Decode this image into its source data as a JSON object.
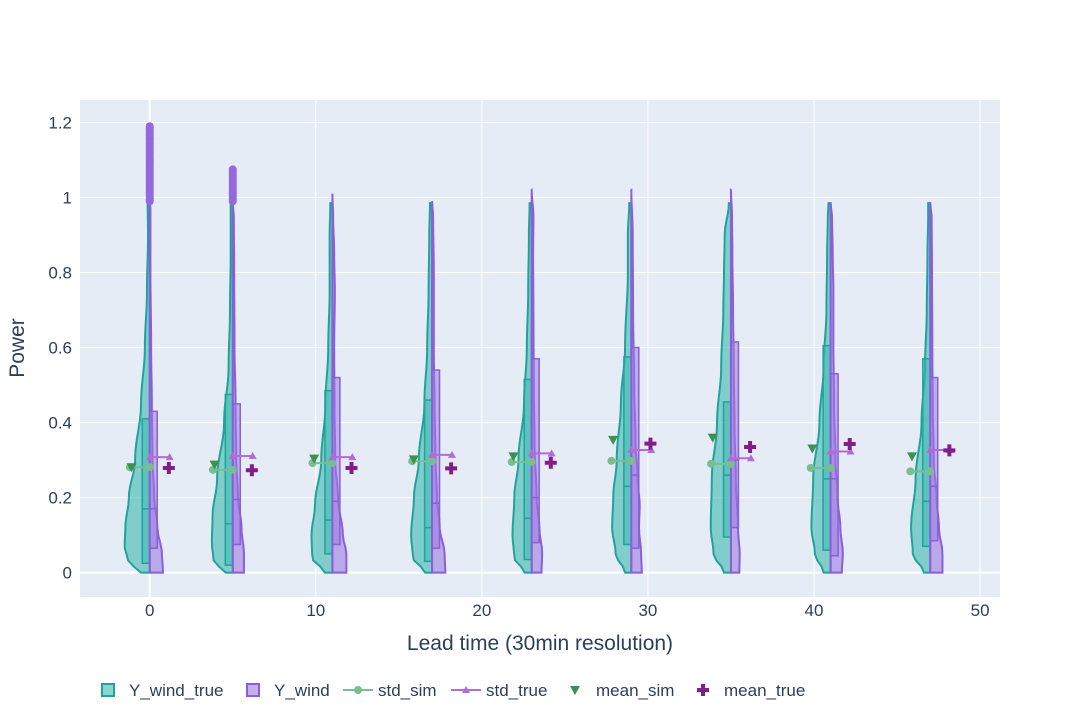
{
  "chart_data": {
    "type": "violin",
    "xlabel": "Lead time (30min resolution)",
    "ylabel": "Power",
    "xlim": [
      -4.2,
      51.2
    ],
    "ylim": [
      -0.065,
      1.26
    ],
    "xticks": [
      0,
      10,
      20,
      30,
      40,
      50
    ],
    "yticks": [
      0,
      0.2,
      0.4,
      0.6,
      0.8,
      1,
      1.2
    ],
    "xtick_labels": [
      "0",
      "10",
      "20",
      "30",
      "40",
      "50"
    ],
    "ytick_labels": [
      "0",
      "0.2",
      "0.4",
      "0.6",
      "0.8",
      "1",
      "1.2"
    ],
    "grid": true,
    "legend_position": "bottom",
    "colors": {
      "plot_bg": "#E5ECF6",
      "grid": "#ffffff",
      "sim_fill": "#3CB9B0",
      "sim_line": "#20A39B",
      "true_fill": "#9C7CE0",
      "true_line": "#8A5FD8",
      "std_sim": "#78BE91",
      "std_true": "#B36BD6",
      "mean_sim": "#3A9152",
      "mean_true": "#821E87",
      "outlier": "#9369DC"
    },
    "legend": [
      {
        "key": "Y_wind_true",
        "label": "Y_wind_true",
        "symbol": "box-sim"
      },
      {
        "key": "Y_wind",
        "label": "Y_wind",
        "symbol": "box-true"
      },
      {
        "key": "std_sim",
        "label": "std_sim",
        "symbol": "line-circle"
      },
      {
        "key": "std_true",
        "label": "std_true",
        "symbol": "line-triangle"
      },
      {
        "key": "mean_sim",
        "label": "mean_sim",
        "symbol": "triangle-down"
      },
      {
        "key": "mean_true",
        "label": "mean_true",
        "symbol": "cross"
      }
    ],
    "lead_times": [
      0,
      5,
      11,
      17,
      23,
      29,
      35,
      41,
      47
    ],
    "series": [
      {
        "name": "Y_wind_true",
        "side": "negative",
        "max": 0.985,
        "quartiles": [
          [
            0.025,
            0.17,
            0.41
          ],
          [
            0.02,
            0.13,
            0.475
          ],
          [
            0.05,
            0.14,
            0.485
          ],
          [
            0.03,
            0.12,
            0.46
          ],
          [
            0.035,
            0.145,
            0.515
          ],
          [
            0.075,
            0.23,
            0.575
          ],
          [
            0.095,
            0.26,
            0.455
          ],
          [
            0.06,
            0.25,
            0.605
          ],
          [
            0.07,
            0.19,
            0.57
          ]
        ],
        "width_profiles": [
          [
            [
              0,
              0.25
            ],
            [
              0.03,
              0.62
            ],
            [
              0.07,
              0.72
            ],
            [
              0.12,
              0.7
            ],
            [
              0.2,
              0.6
            ],
            [
              0.3,
              0.42
            ],
            [
              0.45,
              0.25
            ],
            [
              0.6,
              0.14
            ],
            [
              0.75,
              0.08
            ],
            [
              0.9,
              0.05
            ],
            [
              0.985,
              0.06
            ]
          ],
          [
            [
              0,
              0.2
            ],
            [
              0.03,
              0.55
            ],
            [
              0.08,
              0.6
            ],
            [
              0.15,
              0.58
            ],
            [
              0.25,
              0.45
            ],
            [
              0.4,
              0.25
            ],
            [
              0.55,
              0.12
            ],
            [
              0.7,
              0.08
            ],
            [
              0.85,
              0.06
            ],
            [
              0.985,
              0.06
            ]
          ],
          [
            [
              0,
              0.22
            ],
            [
              0.04,
              0.58
            ],
            [
              0.1,
              0.6
            ],
            [
              0.18,
              0.5
            ],
            [
              0.3,
              0.32
            ],
            [
              0.45,
              0.2
            ],
            [
              0.6,
              0.12
            ],
            [
              0.75,
              0.08
            ],
            [
              0.9,
              0.08
            ],
            [
              0.985,
              0.06
            ]
          ],
          [
            [
              0,
              0.2
            ],
            [
              0.04,
              0.55
            ],
            [
              0.1,
              0.6
            ],
            [
              0.2,
              0.52
            ],
            [
              0.3,
              0.38
            ],
            [
              0.45,
              0.22
            ],
            [
              0.6,
              0.14
            ],
            [
              0.75,
              0.1
            ],
            [
              0.9,
              0.08
            ],
            [
              0.985,
              0.06
            ]
          ],
          [
            [
              0,
              0.2
            ],
            [
              0.04,
              0.5
            ],
            [
              0.1,
              0.55
            ],
            [
              0.2,
              0.5
            ],
            [
              0.3,
              0.38
            ],
            [
              0.45,
              0.22
            ],
            [
              0.6,
              0.14
            ],
            [
              0.75,
              0.1
            ],
            [
              0.9,
              0.08
            ],
            [
              0.985,
              0.06
            ]
          ],
          [
            [
              0,
              0.18
            ],
            [
              0.05,
              0.45
            ],
            [
              0.12,
              0.55
            ],
            [
              0.2,
              0.52
            ],
            [
              0.3,
              0.42
            ],
            [
              0.45,
              0.3
            ],
            [
              0.6,
              0.18
            ],
            [
              0.8,
              0.1
            ],
            [
              0.9,
              0.1
            ],
            [
              0.985,
              0.06
            ]
          ],
          [
            [
              0,
              0.2
            ],
            [
              0.05,
              0.5
            ],
            [
              0.12,
              0.58
            ],
            [
              0.25,
              0.55
            ],
            [
              0.4,
              0.4
            ],
            [
              0.55,
              0.28
            ],
            [
              0.7,
              0.22
            ],
            [
              0.8,
              0.2
            ],
            [
              0.9,
              0.18
            ],
            [
              0.985,
              0.06
            ]
          ],
          [
            [
              0,
              0.2
            ],
            [
              0.05,
              0.45
            ],
            [
              0.12,
              0.55
            ],
            [
              0.25,
              0.5
            ],
            [
              0.4,
              0.32
            ],
            [
              0.55,
              0.2
            ],
            [
              0.7,
              0.12
            ],
            [
              0.85,
              0.1
            ],
            [
              0.95,
              0.08
            ],
            [
              0.985,
              0.06
            ]
          ],
          [
            [
              0,
              0.18
            ],
            [
              0.05,
              0.5
            ],
            [
              0.12,
              0.55
            ],
            [
              0.25,
              0.42
            ],
            [
              0.4,
              0.25
            ],
            [
              0.55,
              0.15
            ],
            [
              0.7,
              0.1
            ],
            [
              0.85,
              0.08
            ],
            [
              0.95,
              0.06
            ],
            [
              0.985,
              0.06
            ]
          ]
        ]
      },
      {
        "name": "Y_wind",
        "side": "positive",
        "tops": [
          1.19,
          1.08,
          1.01,
          0.99,
          1.02,
          1.02,
          1.02,
          0.985,
          0.985
        ],
        "quartiles": [
          [
            0.065,
            0.17,
            0.43
          ],
          [
            0.075,
            0.195,
            0.45
          ],
          [
            0.075,
            0.19,
            0.52
          ],
          [
            0.065,
            0.185,
            0.54
          ],
          [
            0.08,
            0.2,
            0.57
          ],
          [
            0.065,
            0.26,
            0.6
          ],
          [
            0.12,
            0.3,
            0.615
          ],
          [
            0.045,
            0.25,
            0.53
          ],
          [
            0.085,
            0.23,
            0.52
          ]
        ],
        "outlier_ranges": [
          [
            0.99,
            1.19
          ],
          [
            0.99,
            1.075
          ]
        ],
        "width_profiles": [
          [
            [
              0,
              0.38
            ],
            [
              0.05,
              0.35
            ],
            [
              0.12,
              0.22
            ],
            [
              0.2,
              0.13
            ],
            [
              0.3,
              0.08
            ],
            [
              0.45,
              0.06
            ],
            [
              0.6,
              0.04
            ],
            [
              0.8,
              0.02
            ],
            [
              0.97,
              0.02
            ],
            [
              0.99,
              0.0
            ]
          ],
          [
            [
              0,
              0.32
            ],
            [
              0.05,
              0.32
            ],
            [
              0.12,
              0.25
            ],
            [
              0.2,
              0.15
            ],
            [
              0.3,
              0.1
            ],
            [
              0.45,
              0.08
            ],
            [
              0.6,
              0.05
            ],
            [
              0.8,
              0.04
            ],
            [
              0.95,
              0.03
            ],
            [
              0.985,
              0.0
            ]
          ],
          [
            [
              0,
              0.4
            ],
            [
              0.05,
              0.4
            ],
            [
              0.1,
              0.3
            ],
            [
              0.2,
              0.16
            ],
            [
              0.3,
              0.08
            ],
            [
              0.45,
              0.06
            ],
            [
              0.6,
              0.05
            ],
            [
              0.75,
              0.07
            ],
            [
              0.85,
              0.05
            ],
            [
              0.95,
              0.02
            ],
            [
              1.01,
              0.0
            ]
          ],
          [
            [
              0,
              0.38
            ],
            [
              0.05,
              0.36
            ],
            [
              0.12,
              0.22
            ],
            [
              0.2,
              0.14
            ],
            [
              0.3,
              0.1
            ],
            [
              0.45,
              0.07
            ],
            [
              0.6,
              0.05
            ],
            [
              0.8,
              0.05
            ],
            [
              0.95,
              0.03
            ],
            [
              0.99,
              0.0
            ]
          ],
          [
            [
              0,
              0.28
            ],
            [
              0.05,
              0.3
            ],
            [
              0.12,
              0.22
            ],
            [
              0.2,
              0.14
            ],
            [
              0.35,
              0.08
            ],
            [
              0.5,
              0.06
            ],
            [
              0.7,
              0.05
            ],
            [
              0.85,
              0.04
            ],
            [
              0.95,
              0.05
            ],
            [
              1.02,
              0.0
            ]
          ],
          [
            [
              0,
              0.3
            ],
            [
              0.05,
              0.28
            ],
            [
              0.12,
              0.22
            ],
            [
              0.18,
              0.24
            ],
            [
              0.25,
              0.18
            ],
            [
              0.35,
              0.12
            ],
            [
              0.5,
              0.08
            ],
            [
              0.7,
              0.05
            ],
            [
              0.9,
              0.04
            ],
            [
              1.02,
              0.0
            ]
          ],
          [
            [
              0,
              0.24
            ],
            [
              0.05,
              0.25
            ],
            [
              0.12,
              0.2
            ],
            [
              0.25,
              0.14
            ],
            [
              0.4,
              0.1
            ],
            [
              0.55,
              0.08
            ],
            [
              0.7,
              0.06
            ],
            [
              0.85,
              0.04
            ],
            [
              0.95,
              0.03
            ],
            [
              1.02,
              0.0
            ]
          ],
          [
            [
              0,
              0.32
            ],
            [
              0.05,
              0.35
            ],
            [
              0.12,
              0.28
            ],
            [
              0.2,
              0.2
            ],
            [
              0.3,
              0.14
            ],
            [
              0.45,
              0.1
            ],
            [
              0.6,
              0.08
            ],
            [
              0.75,
              0.08
            ],
            [
              0.85,
              0.06
            ],
            [
              0.95,
              0.04
            ],
            [
              0.985,
              0.0
            ]
          ],
          [
            [
              0,
              0.35
            ],
            [
              0.05,
              0.35
            ],
            [
              0.12,
              0.25
            ],
            [
              0.2,
              0.18
            ],
            [
              0.3,
              0.1
            ],
            [
              0.45,
              0.07
            ],
            [
              0.6,
              0.06
            ],
            [
              0.8,
              0.05
            ],
            [
              0.95,
              0.04
            ],
            [
              0.985,
              0.0
            ]
          ]
        ]
      }
    ],
    "std_sim": [
      0.281,
      0.274,
      0.292,
      0.297,
      0.295,
      0.298,
      0.29,
      0.279,
      0.27
    ],
    "std_true": [
      0.308,
      0.311,
      0.308,
      0.314,
      0.318,
      0.327,
      0.305,
      0.323,
      0.327
    ],
    "mean_sim": [
      0.281,
      0.288,
      0.304,
      0.302,
      0.31,
      0.354,
      0.36,
      0.331,
      0.31
    ],
    "mean_true": [
      0.279,
      0.273,
      0.279,
      0.278,
      0.293,
      0.344,
      0.335,
      0.343,
      0.326
    ]
  }
}
